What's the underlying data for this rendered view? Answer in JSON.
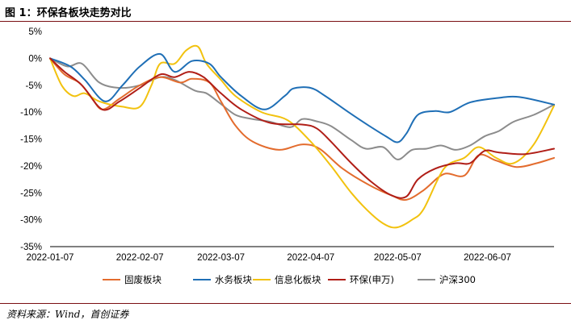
{
  "header": {
    "title": "图 1：环保各板块走势对比"
  },
  "footer": {
    "source": "资料来源：Wind，首创证券"
  },
  "chart_data": {
    "type": "line",
    "title": "",
    "xlabel": "",
    "ylabel": "",
    "x_ticks": [
      "2022-01-07",
      "2022-02-07",
      "2022-03-07",
      "2022-04-07",
      "2022-05-07",
      "2022-06-07"
    ],
    "x_range": [
      "2022-01-07",
      "2022-06-30"
    ],
    "y_ticks": [
      5,
      0,
      -5,
      -10,
      -15,
      -20,
      -25,
      -30,
      -35
    ],
    "y_tick_labels": [
      "5%",
      "0%",
      "-5%",
      "-10%",
      "-15%",
      "-20%",
      "-25%",
      "-30%",
      "-35%"
    ],
    "ylim": [
      -35,
      5
    ],
    "grid": false,
    "legend_position": "bottom",
    "series": [
      {
        "name": "固废板块",
        "color": "#e36c2e",
        "points": [
          [
            "2022-01-07",
            0
          ],
          [
            "2022-01-12",
            -3
          ],
          [
            "2022-01-17",
            -4.5
          ],
          [
            "2022-01-21",
            -7
          ],
          [
            "2022-01-25",
            -9.5
          ],
          [
            "2022-01-31",
            -7.5
          ],
          [
            "2022-02-07",
            -5
          ],
          [
            "2022-02-14",
            -3.5
          ],
          [
            "2022-02-21",
            -4.5
          ],
          [
            "2022-02-25",
            -3.8
          ],
          [
            "2022-03-03",
            -4.5
          ],
          [
            "2022-03-07",
            -8
          ],
          [
            "2022-03-12",
            -12.5
          ],
          [
            "2022-03-18",
            -15.5
          ],
          [
            "2022-03-27",
            -17
          ],
          [
            "2022-04-04",
            -16
          ],
          [
            "2022-04-10",
            -16.8
          ],
          [
            "2022-04-18",
            -20.5
          ],
          [
            "2022-04-27",
            -23.5
          ],
          [
            "2022-05-05",
            -25.5
          ],
          [
            "2022-05-10",
            -26.3
          ],
          [
            "2022-05-16",
            -24.5
          ],
          [
            "2022-05-23",
            -21.5
          ],
          [
            "2022-05-30",
            -21.8
          ],
          [
            "2022-06-04",
            -18
          ],
          [
            "2022-06-10",
            -19
          ],
          [
            "2022-06-17",
            -20.2
          ],
          [
            "2022-06-24",
            -19.5
          ],
          [
            "2022-06-30",
            -18.5
          ]
        ]
      },
      {
        "name": "水务板块",
        "color": "#1f6fb6",
        "points": [
          [
            "2022-01-07",
            0
          ],
          [
            "2022-01-14",
            -1.5
          ],
          [
            "2022-01-19",
            -4
          ],
          [
            "2022-01-26",
            -8
          ],
          [
            "2022-02-01",
            -5
          ],
          [
            "2022-02-07",
            -1.5
          ],
          [
            "2022-02-14",
            0.8
          ],
          [
            "2022-02-19",
            -2.5
          ],
          [
            "2022-02-25",
            -0.5
          ],
          [
            "2022-03-03",
            -1
          ],
          [
            "2022-03-07",
            -3.5
          ],
          [
            "2022-03-14",
            -7
          ],
          [
            "2022-03-22",
            -9.5
          ],
          [
            "2022-03-29",
            -7
          ],
          [
            "2022-04-01",
            -5.6
          ],
          [
            "2022-04-07",
            -5.5
          ],
          [
            "2022-04-12",
            -7
          ],
          [
            "2022-04-20",
            -10
          ],
          [
            "2022-04-27",
            -12.5
          ],
          [
            "2022-05-03",
            -14.5
          ],
          [
            "2022-05-07",
            -15.6
          ],
          [
            "2022-05-10",
            -14
          ],
          [
            "2022-05-14",
            -10.5
          ],
          [
            "2022-05-20",
            -9.8
          ],
          [
            "2022-05-25",
            -10
          ],
          [
            "2022-06-01",
            -8.2
          ],
          [
            "2022-06-10",
            -7.4
          ],
          [
            "2022-06-18",
            -7.2
          ],
          [
            "2022-06-30",
            -8.6
          ]
        ]
      },
      {
        "name": "信息化板块",
        "color": "#f2c20f",
        "points": [
          [
            "2022-01-07",
            0
          ],
          [
            "2022-01-11",
            -5
          ],
          [
            "2022-01-15",
            -7
          ],
          [
            "2022-01-19",
            -6.5
          ],
          [
            "2022-01-24",
            -8
          ],
          [
            "2022-02-01",
            -9
          ],
          [
            "2022-02-07",
            -9
          ],
          [
            "2022-02-11",
            -5
          ],
          [
            "2022-02-14",
            -1
          ],
          [
            "2022-02-19",
            -1
          ],
          [
            "2022-02-23",
            1.5
          ],
          [
            "2022-02-27",
            2.2
          ],
          [
            "2022-03-02",
            -1
          ],
          [
            "2022-03-07",
            -4
          ],
          [
            "2022-03-12",
            -7
          ],
          [
            "2022-03-21",
            -10
          ],
          [
            "2022-03-30",
            -11.5
          ],
          [
            "2022-04-07",
            -15.5
          ],
          [
            "2022-04-14",
            -20
          ],
          [
            "2022-04-21",
            -25
          ],
          [
            "2022-04-28",
            -29
          ],
          [
            "2022-05-03",
            -31
          ],
          [
            "2022-05-07",
            -31.4
          ],
          [
            "2022-05-12",
            -30
          ],
          [
            "2022-05-16",
            -28
          ],
          [
            "2022-05-23",
            -20.5
          ],
          [
            "2022-05-30",
            -18.5
          ],
          [
            "2022-06-04",
            -16.5
          ],
          [
            "2022-06-10",
            -18.5
          ],
          [
            "2022-06-16",
            -19.5
          ],
          [
            "2022-06-23",
            -16
          ],
          [
            "2022-06-30",
            -8.8
          ]
        ]
      },
      {
        "name": "环保(申万)",
        "color": "#b01e17",
        "points": [
          [
            "2022-01-07",
            0
          ],
          [
            "2022-01-12",
            -2.5
          ],
          [
            "2022-01-18",
            -5
          ],
          [
            "2022-01-25",
            -9.5
          ],
          [
            "2022-01-31",
            -8
          ],
          [
            "2022-02-07",
            -5.5
          ],
          [
            "2022-02-14",
            -3
          ],
          [
            "2022-02-19",
            -3.5
          ],
          [
            "2022-02-24",
            -2.5
          ],
          [
            "2022-03-01",
            -3.5
          ],
          [
            "2022-03-07",
            -6.5
          ],
          [
            "2022-03-14",
            -9.5
          ],
          [
            "2022-03-24",
            -12
          ],
          [
            "2022-04-04",
            -12.3
          ],
          [
            "2022-04-09",
            -13
          ],
          [
            "2022-04-14",
            -15.5
          ],
          [
            "2022-04-21",
            -19.5
          ],
          [
            "2022-04-28",
            -23
          ],
          [
            "2022-05-05",
            -25.5
          ],
          [
            "2022-05-10",
            -25.7
          ],
          [
            "2022-05-14",
            -22.5
          ],
          [
            "2022-05-20",
            -20.5
          ],
          [
            "2022-05-27",
            -19.5
          ],
          [
            "2022-06-01",
            -19.5
          ],
          [
            "2022-06-06",
            -17.2
          ],
          [
            "2022-06-11",
            -17.5
          ],
          [
            "2022-06-20",
            -17.8
          ],
          [
            "2022-06-30",
            -16.8
          ]
        ]
      },
      {
        "name": "沪深300",
        "color": "#8c8c8c",
        "points": [
          [
            "2022-01-07",
            0
          ],
          [
            "2022-01-13",
            -1.5
          ],
          [
            "2022-01-18",
            -1
          ],
          [
            "2022-01-24",
            -4.5
          ],
          [
            "2022-01-31",
            -5.5
          ],
          [
            "2022-02-07",
            -5
          ],
          [
            "2022-02-14",
            -3.5
          ],
          [
            "2022-02-19",
            -4
          ],
          [
            "2022-02-26",
            -6
          ],
          [
            "2022-03-02",
            -6.5
          ],
          [
            "2022-03-07",
            -8.5
          ],
          [
            "2022-03-12",
            -10.5
          ],
          [
            "2022-03-17",
            -11.2
          ],
          [
            "2022-03-24",
            -11.8
          ],
          [
            "2022-03-31",
            -12.8
          ],
          [
            "2022-04-04",
            -11.3
          ],
          [
            "2022-04-09",
            -11.7
          ],
          [
            "2022-04-14",
            -12.6
          ],
          [
            "2022-04-21",
            -15.2
          ],
          [
            "2022-04-26",
            -16.8
          ],
          [
            "2022-05-02",
            -16.5
          ],
          [
            "2022-05-07",
            -18.8
          ],
          [
            "2022-05-12",
            -17
          ],
          [
            "2022-05-17",
            -16.8
          ],
          [
            "2022-05-22",
            -16.2
          ],
          [
            "2022-05-27",
            -17
          ],
          [
            "2022-06-01",
            -16.2
          ],
          [
            "2022-06-06",
            -14.5
          ],
          [
            "2022-06-11",
            -13.5
          ],
          [
            "2022-06-16",
            -11.8
          ],
          [
            "2022-06-23",
            -10.5
          ],
          [
            "2022-06-30",
            -8.6
          ]
        ]
      }
    ]
  }
}
